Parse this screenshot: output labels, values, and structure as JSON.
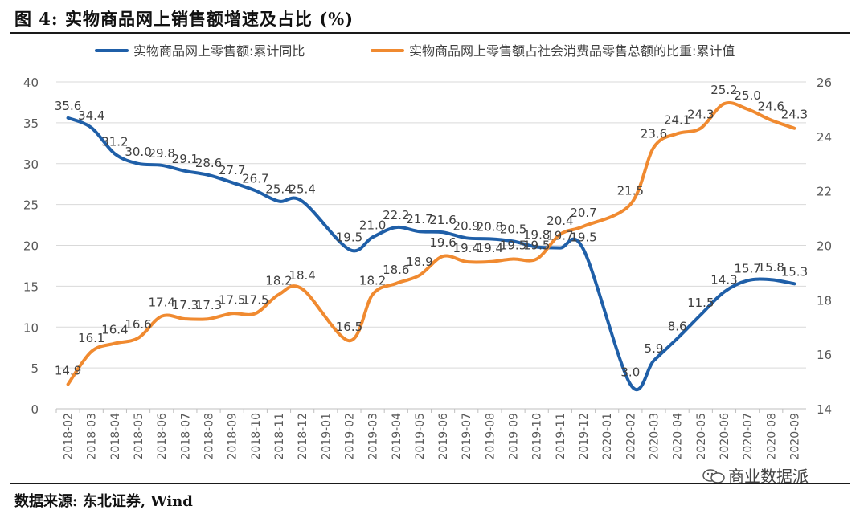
{
  "figure_title": "图 4: 实物商品网上销售额增速及占比 (%)",
  "source_note": "数据来源: 东北证券, Wind",
  "watermark": "商业数据派",
  "chart_data": {
    "type": "line",
    "categories": [
      "2018-02",
      "2018-03",
      "2018-04",
      "2018-05",
      "2018-06",
      "2018-07",
      "2018-08",
      "2018-09",
      "2018-10",
      "2018-11",
      "2018-12",
      "2019-01",
      "2019-02",
      "2019-03",
      "2019-04",
      "2019-05",
      "2019-06",
      "2019-07",
      "2019-08",
      "2019-09",
      "2019-10",
      "2019-11",
      "2019-12",
      "2020-01",
      "2020-02",
      "2020-03",
      "2020-04",
      "2020-05",
      "2020-06",
      "2020-07",
      "2020-08",
      "2020-09"
    ],
    "left_axis": {
      "ylim": [
        0,
        40
      ],
      "ticks": [
        "0",
        "5",
        "10",
        "15",
        "20",
        "25",
        "30",
        "35",
        "40"
      ]
    },
    "right_axis": {
      "ylim": [
        14,
        26
      ],
      "ticks": [
        "14",
        "16",
        "18",
        "20",
        "22",
        "24",
        "26"
      ]
    },
    "legend_position": "top",
    "grid": true,
    "series": [
      {
        "name": "实物商品网上零售额:累计同比",
        "axis": "left",
        "color": "#1f5fa8",
        "values": [
          35.6,
          34.4,
          31.2,
          30.0,
          29.8,
          29.1,
          28.6,
          27.7,
          26.7,
          25.4,
          25.4,
          null,
          19.5,
          21.0,
          22.2,
          21.7,
          21.6,
          20.9,
          20.8,
          20.5,
          19.8,
          19.7,
          19.5,
          null,
          3.0,
          5.9,
          8.6,
          11.5,
          14.3,
          15.7,
          15.8,
          15.3
        ],
        "labels": [
          "35.6",
          "34.4",
          "31.2",
          "30.0",
          "29.8",
          "29.1",
          "28.6",
          "27.7",
          "26.7",
          "25.4",
          "25.4",
          "",
          "19.5",
          "21.0",
          "22.2",
          "21.7",
          "21.6",
          "20.9",
          "20.8",
          "20.5",
          "19.8",
          "19.7",
          "19.5",
          "",
          "3.0",
          "5.9",
          "8.6",
          "11.5",
          "14.3",
          "15.7",
          "15.8",
          "15.3"
        ]
      },
      {
        "name": "实物商品网上零售额占社会消费品零售总额的比重:累计值",
        "axis": "right",
        "color": "#f08a30",
        "values": [
          14.9,
          16.1,
          16.4,
          16.6,
          17.4,
          17.3,
          17.3,
          17.5,
          17.5,
          18.2,
          18.4,
          null,
          16.5,
          18.2,
          18.6,
          18.9,
          19.6,
          19.4,
          19.4,
          19.5,
          19.5,
          20.4,
          20.7,
          null,
          21.5,
          23.6,
          24.1,
          24.3,
          25.2,
          25.0,
          24.6,
          24.3
        ],
        "labels": [
          "14.9",
          "16.1",
          "16.4",
          "16.6",
          "17.4",
          "17.3",
          "17.3",
          "17.5",
          "17.5",
          "18.2",
          "18.4",
          "",
          "16.5",
          "18.2",
          "18.6",
          "18.9",
          "19.6",
          "19.4",
          "19.4",
          "19.5",
          "19.5",
          "20.4",
          "20.7",
          "",
          "21.5",
          "23.6",
          "24.1",
          "24.3",
          "25.2",
          "25.0",
          "24.6",
          "24.3"
        ]
      }
    ]
  }
}
